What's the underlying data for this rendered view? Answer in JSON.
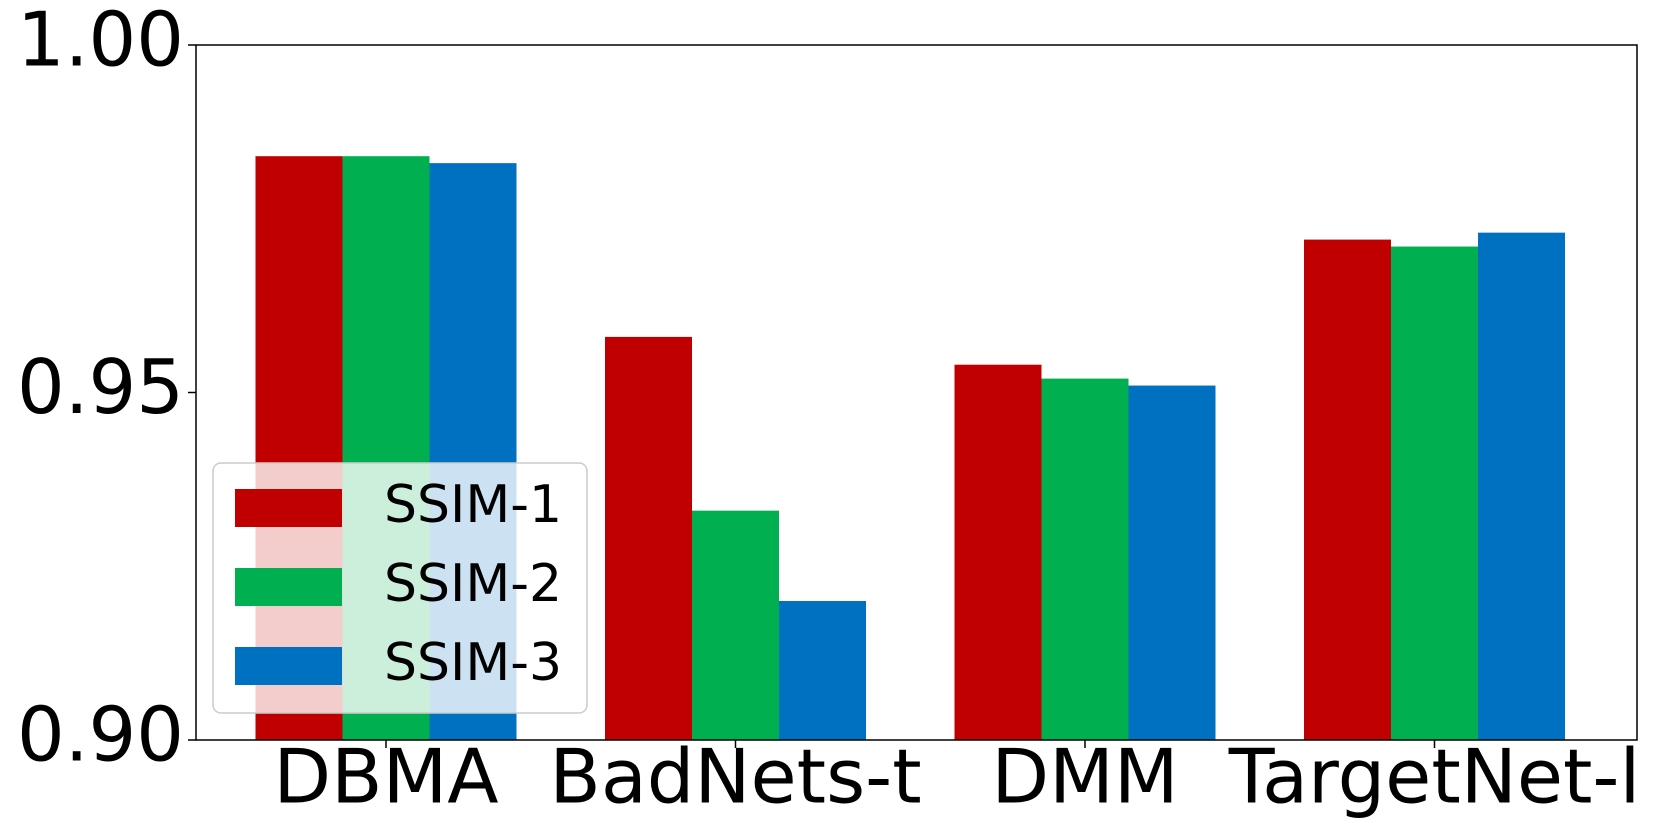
{
  "chart_data": {
    "type": "bar",
    "categories": [
      "DBMA",
      "BadNets-t",
      "DMM",
      "TargetNet-l"
    ],
    "series": [
      {
        "name": "SSIM-1",
        "color": "#c00000",
        "values": [
          0.984,
          0.958,
          0.954,
          0.972
        ]
      },
      {
        "name": "SSIM-2",
        "color": "#00b050",
        "values": [
          0.984,
          0.933,
          0.952,
          0.971
        ]
      },
      {
        "name": "SSIM-3",
        "color": "#0070c0",
        "values": [
          0.983,
          0.92,
          0.951,
          0.973
        ]
      }
    ],
    "ylim": [
      0.9,
      1.0
    ],
    "yticks": [
      {
        "value": 0.9,
        "label": "0.90"
      },
      {
        "value": 0.95,
        "label": "0.95"
      },
      {
        "value": 1.0,
        "label": "1.00"
      }
    ],
    "legend": "lower left"
  }
}
